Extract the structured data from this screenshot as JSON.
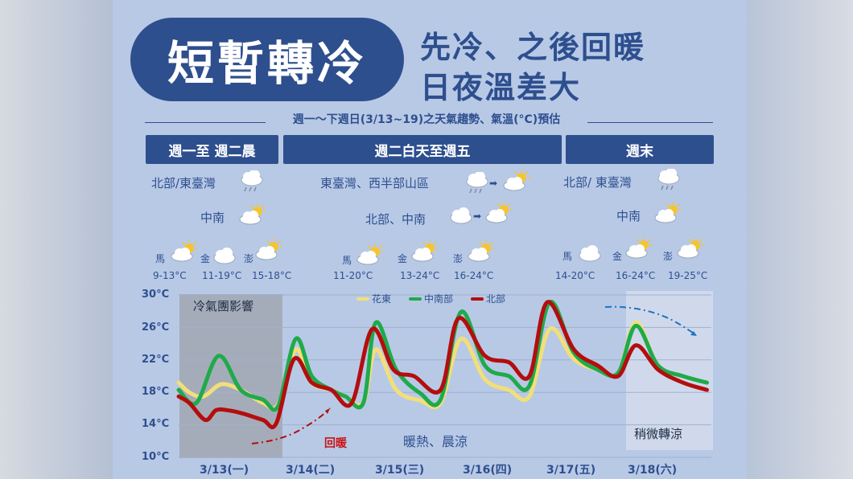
{
  "title": "短暫轉冷",
  "subtitle": [
    "先冷、之後回暖",
    "日夜溫差大"
  ],
  "date_range": "週一～下週日(3/13~19)之天氣趨勢、氣溫(°C)預估",
  "periods": [
    {
      "header": "週一至 週二晨",
      "regions": [
        {
          "label": "北部/東臺灣",
          "icons": [
            "cloud-rain-icon"
          ]
        },
        {
          "label": "中南",
          "icons": [
            "sun-cloud-icon"
          ]
        }
      ],
      "cities": [
        {
          "name": "馬",
          "range": "9-13°C",
          "icon": "sun-cloud-icon"
        },
        {
          "name": "金",
          "range": "11-19°C",
          "icon": "cloud-icon"
        },
        {
          "name": "澎",
          "range": "15-18°C",
          "icon": "sun-cloud-icon"
        }
      ]
    },
    {
      "header": "週二白天至週五",
      "regions": [
        {
          "label": "東臺灣、西半部山區",
          "icons": [
            "cloud-rain-icon",
            "sun-cloud-icon"
          ]
        },
        {
          "label": "北部、中南",
          "icons": [
            "cloud-icon",
            "sun-cloud-icon"
          ]
        }
      ],
      "cities": [
        {
          "name": "馬",
          "range": "11-20°C",
          "icon": "sun-cloud-icon"
        },
        {
          "name": "金",
          "range": "13-24°C",
          "icon": "sun-cloud-icon"
        },
        {
          "name": "澎",
          "range": "16-24°C",
          "icon": "sun-cloud-icon"
        }
      ]
    },
    {
      "header": "週末",
      "regions": [
        {
          "label": "北部/ 東臺灣",
          "icons": [
            "cloud-rain-icon"
          ]
        },
        {
          "label": "中南",
          "icons": [
            "sun-cloud-icon"
          ]
        }
      ],
      "cities": [
        {
          "name": "馬",
          "range": "14-20°C",
          "icon": "cloud-icon"
        },
        {
          "name": "金",
          "range": "16-24°C",
          "icon": "sun-cloud-icon"
        },
        {
          "name": "澎",
          "range": "19-25°C",
          "icon": "sun-cloud-icon"
        }
      ]
    }
  ],
  "colors": {
    "navy": "#2e4f8e",
    "yellow": "#f2df78",
    "green": "#1faa4b",
    "red": "#b30e0e"
  },
  "chart_data": {
    "type": "line",
    "ylim": [
      10,
      30
    ],
    "yticks": [
      "30°C",
      "26°C",
      "22°C",
      "18°C",
      "14°C",
      "10°C"
    ],
    "xticks": [
      "3/13(一)",
      "3/14(二)",
      "3/15(三)",
      "3/16(四)",
      "3/17(五)",
      "3/18(六)"
    ],
    "x_domain": [
      0,
      6
    ],
    "legend": [
      "花東",
      "中南部",
      "北部"
    ],
    "series": [
      {
        "name": "花東",
        "color": "#f2df78",
        "points": [
          [
            0,
            19.2
          ],
          [
            0.12,
            18.0
          ],
          [
            0.28,
            17.5
          ],
          [
            0.48,
            19.0
          ],
          [
            0.7,
            18.3
          ],
          [
            0.95,
            16.7
          ],
          [
            1.12,
            16.5
          ],
          [
            1.32,
            23.3
          ],
          [
            1.5,
            19.2
          ],
          [
            1.72,
            18.3
          ],
          [
            1.88,
            17.5
          ],
          [
            2.08,
            16.7
          ],
          [
            2.22,
            23.3
          ],
          [
            2.45,
            18.3
          ],
          [
            2.72,
            17.0
          ],
          [
            2.95,
            16.7
          ],
          [
            3.18,
            24.6
          ],
          [
            3.45,
            19.6
          ],
          [
            3.72,
            18.3
          ],
          [
            3.95,
            17.5
          ],
          [
            4.18,
            25.8
          ],
          [
            4.45,
            22.1
          ],
          [
            4.72,
            20.8
          ],
          [
            4.95,
            20.4
          ],
          [
            5.15,
            26.6
          ],
          [
            5.4,
            21.3
          ],
          [
            5.68,
            20.0
          ],
          [
            5.95,
            19.2
          ]
        ]
      },
      {
        "name": "中南部",
        "color": "#1faa4b",
        "points": [
          [
            0,
            18.3
          ],
          [
            0.2,
            16.7
          ],
          [
            0.45,
            22.5
          ],
          [
            0.7,
            18.3
          ],
          [
            0.95,
            17.1
          ],
          [
            1.12,
            16.3
          ],
          [
            1.32,
            24.6
          ],
          [
            1.5,
            20.0
          ],
          [
            1.72,
            18.3
          ],
          [
            1.88,
            17.5
          ],
          [
            2.08,
            16.7
          ],
          [
            2.22,
            26.6
          ],
          [
            2.45,
            20.8
          ],
          [
            2.72,
            17.9
          ],
          [
            2.95,
            17.1
          ],
          [
            3.18,
            27.9
          ],
          [
            3.45,
            21.3
          ],
          [
            3.72,
            20.0
          ],
          [
            3.95,
            18.8
          ],
          [
            4.18,
            29.1
          ],
          [
            4.45,
            22.9
          ],
          [
            4.72,
            20.8
          ],
          [
            4.95,
            20.4
          ],
          [
            5.15,
            26.2
          ],
          [
            5.4,
            21.3
          ],
          [
            5.68,
            20.0
          ],
          [
            5.95,
            19.2
          ]
        ]
      },
      {
        "name": "北部",
        "color": "#b30e0e",
        "points": [
          [
            0,
            17.5
          ],
          [
            0.12,
            16.7
          ],
          [
            0.3,
            14.6
          ],
          [
            0.42,
            15.8
          ],
          [
            0.55,
            15.8
          ],
          [
            0.72,
            15.4
          ],
          [
            0.95,
            14.6
          ],
          [
            1.1,
            14.2
          ],
          [
            1.3,
            22.1
          ],
          [
            1.5,
            19.2
          ],
          [
            1.72,
            18.3
          ],
          [
            1.95,
            16.7
          ],
          [
            2.18,
            25.8
          ],
          [
            2.42,
            20.8
          ],
          [
            2.65,
            20.0
          ],
          [
            2.95,
            18.3
          ],
          [
            3.15,
            27.1
          ],
          [
            3.45,
            22.5
          ],
          [
            3.72,
            21.7
          ],
          [
            3.95,
            20.0
          ],
          [
            4.15,
            29.1
          ],
          [
            4.45,
            23.3
          ],
          [
            4.72,
            21.3
          ],
          [
            4.95,
            20.0
          ],
          [
            5.15,
            23.8
          ],
          [
            5.4,
            20.8
          ],
          [
            5.68,
            19.2
          ],
          [
            5.95,
            18.3
          ]
        ]
      }
    ],
    "annotations": {
      "cold": "冷氣團影響",
      "warm_back": "回暖",
      "warm": "暖熱、晨涼",
      "cool": "稍微轉涼"
    }
  }
}
